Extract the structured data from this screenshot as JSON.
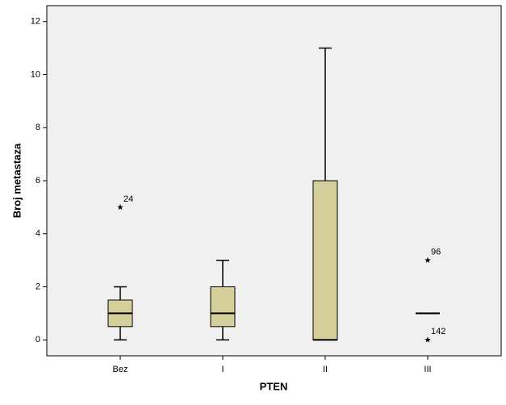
{
  "chart_data": {
    "type": "box",
    "x_label": "PTEN",
    "y_label": "Broj metastaza",
    "categories": [
      "Bez",
      "I",
      "II",
      "III"
    ],
    "boxes": [
      {
        "min": 0,
        "q1": 0.5,
        "median": 1,
        "q3": 1.5,
        "max": 2
      },
      {
        "min": 0,
        "q1": 0.5,
        "median": 1,
        "q3": 2,
        "max": 3
      },
      {
        "min": 0,
        "q1": 0,
        "median": 0,
        "q3": 6,
        "max": 11
      },
      {
        "min": 1,
        "q1": 1,
        "median": 1,
        "q3": 1,
        "max": 1
      }
    ],
    "outliers": [
      [
        {
          "value": 5,
          "label": "24"
        }
      ],
      [],
      [],
      [
        {
          "value": 3,
          "label": "96"
        },
        {
          "value": 0,
          "label": "142"
        }
      ]
    ],
    "color": "#d4cf9b",
    "plot_background": "#f0f0f0",
    "ylim": [
      -0.6,
      12.6
    ],
    "yticks": [
      0,
      2,
      4,
      6,
      8,
      10,
      12
    ]
  }
}
